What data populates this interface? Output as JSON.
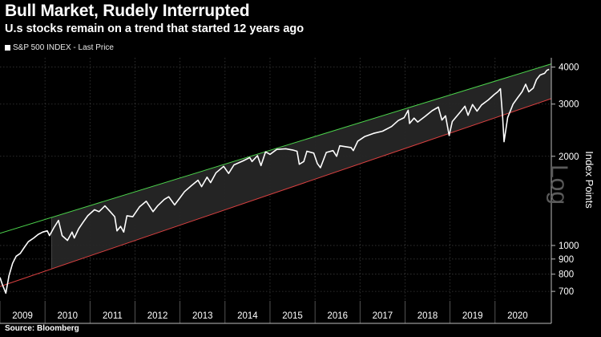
{
  "chart_data": {
    "type": "line",
    "title": "Bull Market, Rudely Interrupted",
    "subtitle": "U.s stocks remain on a trend that started 12 years ago",
    "legend": {
      "entries": [
        "S&P 500 INDEX - Last Price"
      ],
      "placement": "top-left"
    },
    "source": "Source: Bloomberg",
    "ylabel": "Index Points",
    "scale_mark": "Log",
    "y_scale": "log",
    "ylim": [
      650,
      4300
    ],
    "y_ticks": [
      700,
      800,
      900,
      1000,
      2000,
      3000,
      4000
    ],
    "y_tick_labels": [
      "700",
      "800",
      "900",
      "1000",
      "2000",
      "3000",
      "4000"
    ],
    "xlim": [
      2009.0,
      2021.25
    ],
    "x_ticks": [
      "2009",
      "2010",
      "2011",
      "2012",
      "2013",
      "2014",
      "2015",
      "2016",
      "2017",
      "2018",
      "2019",
      "2020"
    ],
    "grid": true,
    "series": [
      {
        "name": "S&P 500 INDEX - Last Price",
        "color": "#ffffff",
        "points": [
          [
            2009.0,
            780
          ],
          [
            2009.05,
            740
          ],
          [
            2009.13,
            690
          ],
          [
            2009.2,
            790
          ],
          [
            2009.28,
            870
          ],
          [
            2009.36,
            920
          ],
          [
            2009.45,
            940
          ],
          [
            2009.55,
            990
          ],
          [
            2009.63,
            1030
          ],
          [
            2009.75,
            1060
          ],
          [
            2009.85,
            1090
          ],
          [
            2009.95,
            1110
          ],
          [
            2010.05,
            1120
          ],
          [
            2010.1,
            1080
          ],
          [
            2010.2,
            1150
          ],
          [
            2010.3,
            1215
          ],
          [
            2010.38,
            1080
          ],
          [
            2010.5,
            1040
          ],
          [
            2010.6,
            1110
          ],
          [
            2010.65,
            1060
          ],
          [
            2010.75,
            1140
          ],
          [
            2010.85,
            1200
          ],
          [
            2010.95,
            1260
          ],
          [
            2011.1,
            1320
          ],
          [
            2011.2,
            1300
          ],
          [
            2011.33,
            1360
          ],
          [
            2011.45,
            1300
          ],
          [
            2011.55,
            1250
          ],
          [
            2011.6,
            1120
          ],
          [
            2011.68,
            1160
          ],
          [
            2011.75,
            1110
          ],
          [
            2011.82,
            1260
          ],
          [
            2011.95,
            1250
          ],
          [
            2012.1,
            1350
          ],
          [
            2012.25,
            1410
          ],
          [
            2012.4,
            1300
          ],
          [
            2012.5,
            1360
          ],
          [
            2012.65,
            1430
          ],
          [
            2012.75,
            1460
          ],
          [
            2012.88,
            1370
          ],
          [
            2012.97,
            1430
          ],
          [
            2013.1,
            1520
          ],
          [
            2013.25,
            1590
          ],
          [
            2013.4,
            1660
          ],
          [
            2013.48,
            1580
          ],
          [
            2013.6,
            1700
          ],
          [
            2013.68,
            1630
          ],
          [
            2013.8,
            1760
          ],
          [
            2013.97,
            1850
          ],
          [
            2014.08,
            1750
          ],
          [
            2014.2,
            1870
          ],
          [
            2014.4,
            1930
          ],
          [
            2014.55,
            1980
          ],
          [
            2014.6,
            1920
          ],
          [
            2014.72,
            2010
          ],
          [
            2014.8,
            1860
          ],
          [
            2014.9,
            2070
          ],
          [
            2015.0,
            2030
          ],
          [
            2015.15,
            2110
          ],
          [
            2015.35,
            2120
          ],
          [
            2015.5,
            2100
          ],
          [
            2015.6,
            2080
          ],
          [
            2015.65,
            1880
          ],
          [
            2015.75,
            1920
          ],
          [
            2015.82,
            2080
          ],
          [
            2015.97,
            2050
          ],
          [
            2016.05,
            1890
          ],
          [
            2016.12,
            1830
          ],
          [
            2016.25,
            2060
          ],
          [
            2016.4,
            2090
          ],
          [
            2016.48,
            2000
          ],
          [
            2016.55,
            2170
          ],
          [
            2016.8,
            2140
          ],
          [
            2016.85,
            2090
          ],
          [
            2016.95,
            2250
          ],
          [
            2017.1,
            2330
          ],
          [
            2017.3,
            2390
          ],
          [
            2017.5,
            2430
          ],
          [
            2017.7,
            2520
          ],
          [
            2017.85,
            2640
          ],
          [
            2017.98,
            2700
          ],
          [
            2018.07,
            2860
          ],
          [
            2018.1,
            2580
          ],
          [
            2018.2,
            2690
          ],
          [
            2018.28,
            2610
          ],
          [
            2018.45,
            2730
          ],
          [
            2018.6,
            2850
          ],
          [
            2018.74,
            2930
          ],
          [
            2018.82,
            2650
          ],
          [
            2018.9,
            2740
          ],
          [
            2018.98,
            2350
          ],
          [
            2019.05,
            2620
          ],
          [
            2019.25,
            2850
          ],
          [
            2019.33,
            2950
          ],
          [
            2019.4,
            2750
          ],
          [
            2019.5,
            2990
          ],
          [
            2019.6,
            2840
          ],
          [
            2019.7,
            2980
          ],
          [
            2019.85,
            3100
          ],
          [
            2019.98,
            3230
          ],
          [
            2020.06,
            3300
          ],
          [
            2020.12,
            3380
          ],
          [
            2020.17,
            2700
          ],
          [
            2020.2,
            2240
          ],
          [
            2020.28,
            2700
          ],
          [
            2020.4,
            3000
          ],
          [
            2020.5,
            3150
          ],
          [
            2020.6,
            3300
          ],
          [
            2020.68,
            3500
          ],
          [
            2020.75,
            3300
          ],
          [
            2020.85,
            3400
          ],
          [
            2020.92,
            3630
          ],
          [
            2021.0,
            3760
          ],
          [
            2021.1,
            3810
          ],
          [
            2021.15,
            3900
          ],
          [
            2021.2,
            3930
          ]
        ]
      },
      {
        "name": "Upper trend line",
        "color": "#4cd44c",
        "points": [
          [
            2008.92,
            1090
          ],
          [
            2021.25,
            4100
          ]
        ]
      },
      {
        "name": "Lower trend line",
        "color": "#d94040",
        "points": [
          [
            2008.92,
            720
          ],
          [
            2021.25,
            3130
          ]
        ]
      }
    ]
  }
}
